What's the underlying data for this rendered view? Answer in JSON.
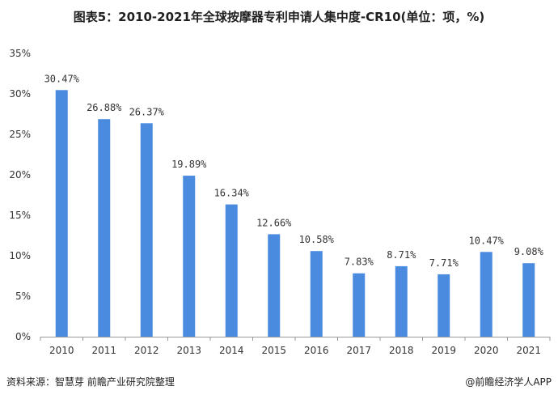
{
  "chart_data": {
    "type": "bar",
    "title": "图表5：2010-2021年全球按摩器专利申请人集中度-CR10(单位：项，%)",
    "categories": [
      "2010",
      "2011",
      "2012",
      "2013",
      "2014",
      "2015",
      "2016",
      "2017",
      "2018",
      "2019",
      "2020",
      "2021"
    ],
    "values": [
      30.47,
      26.88,
      26.37,
      19.89,
      16.34,
      12.66,
      10.58,
      7.83,
      8.71,
      7.71,
      10.47,
      9.08
    ],
    "data_labels": [
      "30.47%",
      "26.88%",
      "26.37%",
      "19.89%",
      "16.34%",
      "12.66%",
      "10.58%",
      "7.83%",
      "8.71%",
      "7.71%",
      "10.47%",
      "9.08%"
    ],
    "ylim": [
      0,
      35
    ],
    "yticks": [
      0,
      5,
      10,
      15,
      20,
      25,
      30,
      35
    ],
    "ytick_labels": [
      "0%",
      "5%",
      "10%",
      "15%",
      "20%",
      "25%",
      "30%",
      "35%"
    ],
    "bar_color": "#4a8be0",
    "grid": false,
    "legend": "none"
  },
  "footer": {
    "source": "资料来源：智慧芽 前瞻产业研究院整理",
    "brand": "@前瞻经济学人APP"
  }
}
